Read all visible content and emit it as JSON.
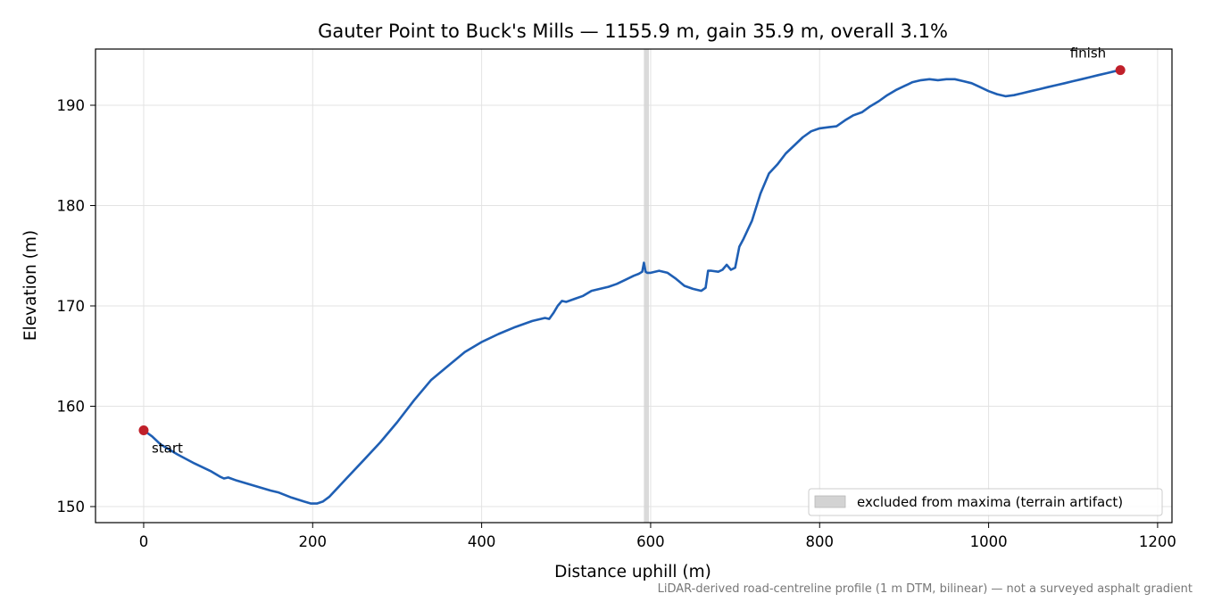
{
  "chart_data": {
    "type": "line",
    "title": "Gauter Point to Buck's Mills — 1155.9 m, gain 35.9 m, overall 3.1%",
    "xlabel": "Distance uphill (m)",
    "ylabel": "Elevation (m)",
    "xlim": [
      -57,
      1217
    ],
    "ylim": [
      148.4,
      195.6
    ],
    "xticks": [
      0,
      200,
      400,
      600,
      800,
      1000,
      1200
    ],
    "yticks": [
      150,
      160,
      170,
      180,
      190
    ],
    "grid": true,
    "line_color": "#1f5fb4",
    "marker_color": "#c0202a",
    "excluded_band": {
      "x": [
        592,
        598
      ],
      "color": "#d3d3d3"
    },
    "legend": {
      "placement": "bottom-right",
      "entries": [
        "excluded from maxima (terrain artifact)"
      ]
    },
    "annotations": [
      {
        "text": "start",
        "x": 0,
        "y": 157.6
      },
      {
        "text": "finish",
        "x": 1155.9,
        "y": 193.5
      }
    ],
    "footnote": "LiDAR-derived road-centreline profile (1 m DTM, bilinear) — not a surveyed asphalt gradient",
    "series": [
      {
        "x": [
          0,
          10,
          20,
          40,
          60,
          80,
          90,
          95,
          100,
          110,
          130,
          150,
          155,
          160,
          175,
          190,
          198,
          205,
          212,
          220,
          240,
          260,
          280,
          300,
          320,
          340,
          360,
          380,
          400,
          420,
          440,
          460,
          475,
          480,
          485,
          490,
          495,
          500,
          510,
          520,
          530,
          540,
          550,
          560,
          570,
          580,
          586,
          590,
          592,
          594,
          596,
          600,
          610,
          620,
          630,
          640,
          650,
          660,
          665,
          668,
          672,
          680,
          685,
          690,
          695,
          700,
          705,
          710,
          720,
          730,
          740,
          750,
          760,
          770,
          780,
          790,
          800,
          810,
          820,
          830,
          840,
          850,
          860,
          870,
          880,
          890,
          900,
          910,
          920,
          930,
          940,
          950,
          960,
          970,
          980,
          990,
          1000,
          1010,
          1020,
          1030,
          1040,
          1050,
          1060,
          1070,
          1080,
          1090,
          1100,
          1110,
          1120,
          1130,
          1140,
          1150,
          1155.9
        ],
        "y": [
          157.6,
          157.0,
          156.2,
          155.2,
          154.3,
          153.5,
          153.0,
          152.8,
          152.9,
          152.6,
          152.1,
          151.6,
          151.5,
          151.4,
          150.9,
          150.5,
          150.3,
          150.3,
          150.5,
          151.0,
          152.8,
          154.6,
          156.4,
          158.4,
          160.6,
          162.6,
          164.0,
          165.4,
          166.4,
          167.2,
          167.9,
          168.5,
          168.8,
          168.7,
          169.3,
          170.0,
          170.5,
          170.4,
          170.7,
          171.0,
          171.5,
          171.7,
          171.9,
          172.2,
          172.6,
          173.0,
          173.2,
          173.4,
          174.3,
          173.4,
          173.3,
          173.3,
          173.5,
          173.3,
          172.7,
          172.0,
          171.7,
          171.5,
          171.8,
          173.5,
          173.5,
          173.4,
          173.6,
          174.1,
          173.6,
          173.8,
          175.9,
          176.7,
          178.5,
          181.2,
          183.2,
          184.1,
          185.2,
          186.0,
          186.8,
          187.4,
          187.7,
          187.8,
          187.9,
          188.5,
          189.0,
          189.3,
          189.9,
          190.4,
          191.0,
          191.5,
          191.9,
          192.3,
          192.5,
          192.6,
          192.5,
          192.6,
          192.6,
          192.4,
          192.2,
          191.8,
          191.4,
          191.1,
          190.9,
          191.0,
          191.2,
          191.4,
          191.6,
          191.8,
          192.0,
          192.2,
          192.4,
          192.6,
          192.8,
          193.0,
          193.2,
          193.4,
          193.5
        ]
      }
    ]
  }
}
